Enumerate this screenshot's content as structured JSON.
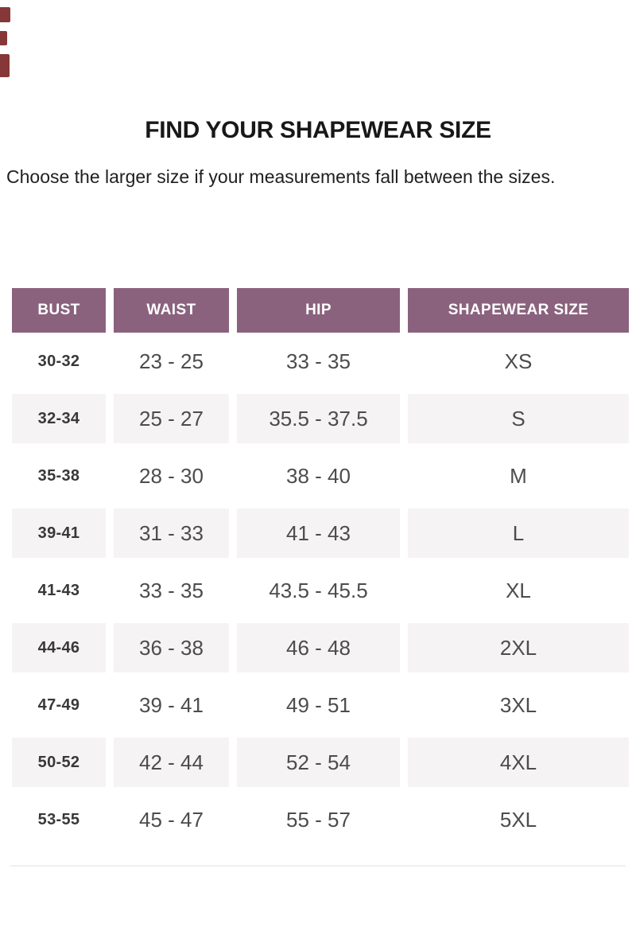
{
  "page": {
    "title": "FIND YOUR SHAPEWEAR SIZE",
    "subtitle": "Choose the larger size if your measurements fall between the sizes."
  },
  "colors": {
    "header_bg": "#8a627e",
    "header_text": "#ffffff",
    "stripe_bg": "#f6f3f5",
    "bust_text": "#383838",
    "value_text": "#4c4c4c",
    "edge_mark": "#7c2626"
  },
  "chart_data": {
    "type": "table",
    "title": "FIND YOUR SHAPEWEAR SIZE",
    "note": "Choose the larger size if your measurements fall between the sizes.",
    "columns": [
      "BUST",
      "WAIST",
      "HIP",
      "SHAPEWEAR SIZE"
    ],
    "rows": [
      [
        "30-32",
        "23 - 25",
        "33 - 35",
        "XS"
      ],
      [
        "32-34",
        "25 - 27",
        "35.5 - 37.5",
        "S"
      ],
      [
        "35-38",
        "28 - 30",
        "38 - 40",
        "M"
      ],
      [
        "39-41",
        "31 - 33",
        "41 - 43",
        "L"
      ],
      [
        "41-43",
        "33 - 35",
        "43.5 - 45.5",
        "XL"
      ],
      [
        "44-46",
        "36 - 38",
        "46 - 48",
        "2XL"
      ],
      [
        "47-49",
        "39 - 41",
        "49 - 51",
        "3XL"
      ],
      [
        "50-52",
        "42 - 44",
        "52 - 54",
        "4XL"
      ],
      [
        "53-55",
        "45 - 47",
        "55 - 57",
        "5XL"
      ]
    ],
    "layout": {
      "striped_row_indices": [
        1,
        3,
        5,
        7
      ],
      "grid": "off",
      "column_gaps": true
    }
  }
}
